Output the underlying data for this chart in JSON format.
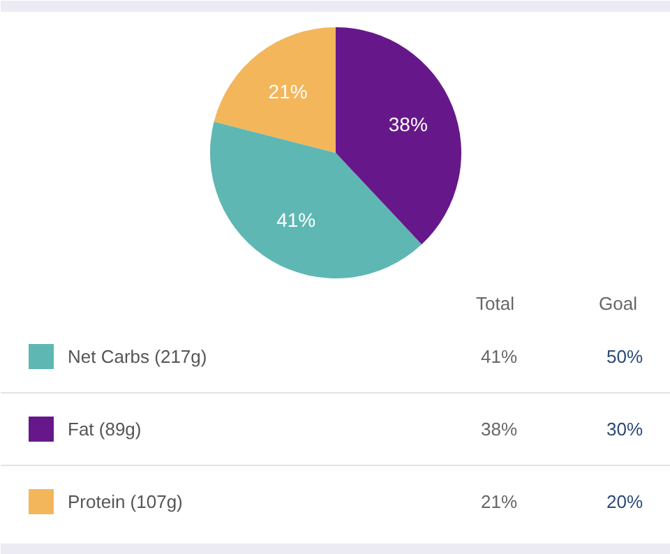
{
  "chart_data": {
    "type": "pie",
    "categories": [
      "Net Carbs (217g)",
      "Fat (89g)",
      "Protein (107g)"
    ],
    "values": [
      41,
      38,
      21
    ],
    "colors": [
      "#5fb7b3",
      "#66188a",
      "#f3b65a"
    ],
    "value_labels": [
      "41%",
      "38%",
      "21%"
    ],
    "legend": "bottom",
    "annotations": [
      "Total",
      "Goal",
      "50%",
      "30%",
      "20%"
    ]
  }
}
